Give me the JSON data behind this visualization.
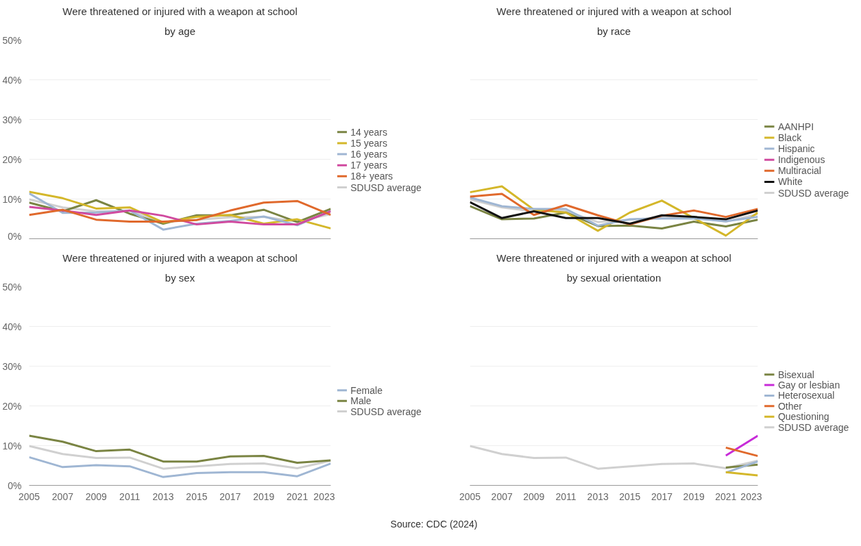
{
  "chart_data": [
    {
      "type": "line",
      "title": "Were threatened or injured with a weapon at school",
      "subtitle": "by age",
      "x": [
        2005,
        2007,
        2009,
        2011,
        2013,
        2015,
        2017,
        2019,
        2021,
        2023
      ],
      "xlim": [
        2005,
        2023
      ],
      "xticks": [
        2005,
        2007,
        2009,
        2011,
        2013,
        2015,
        2017,
        2019,
        2021,
        2023
      ],
      "ylim": [
        0,
        50
      ],
      "yticks": [
        {
          "value": 0,
          "label": "0%"
        },
        {
          "value": 10,
          "label": "10%"
        },
        {
          "value": 20,
          "label": "20%"
        },
        {
          "value": 30,
          "label": "30%"
        },
        {
          "value": 40,
          "label": "40%"
        },
        {
          "value": 50,
          "label": "50%"
        }
      ],
      "grid": "y",
      "legend": "right",
      "tick_labels": "y",
      "series": [
        {
          "name": "SDUSD average",
          "color": "#d0d0d0",
          "values": [
            9.9,
            7.9,
            6.9,
            7.0,
            4.2,
            4.8,
            5.4,
            5.5,
            4.3,
            6.2
          ]
        },
        {
          "name": "14 years",
          "color": "#7a8443",
          "values": [
            9.1,
            6.9,
            9.7,
            6.3,
            3.8,
            5.9,
            5.9,
            7.3,
            4.2,
            7.5
          ]
        },
        {
          "name": "15 years",
          "color": "#d4b72a",
          "values": [
            11.8,
            10.2,
            7.6,
            7.9,
            4.1,
            5.5,
            6.0,
            3.8,
            4.9,
            2.6
          ]
        },
        {
          "name": "16 years",
          "color": "#9fb6d3",
          "values": [
            11.4,
            6.5,
            6.6,
            7.1,
            2.3,
            3.8,
            4.5,
            5.6,
            3.4,
            7.0
          ]
        },
        {
          "name": "17 years",
          "color": "#d04a9f",
          "values": [
            8.0,
            7.1,
            6.0,
            7.1,
            5.8,
            3.6,
            4.3,
            3.6,
            3.6,
            6.9
          ]
        },
        {
          "name": "18+ years",
          "color": "#e0692c",
          "values": [
            6.0,
            7.3,
            4.8,
            4.3,
            4.3,
            4.7,
            7.1,
            9.1,
            9.5,
            6.0
          ]
        }
      ]
    },
    {
      "type": "line",
      "title": "Were threatened or injured with a weapon at school",
      "subtitle": "by race",
      "x": [
        2005,
        2007,
        2009,
        2011,
        2013,
        2015,
        2017,
        2019,
        2021,
        2023
      ],
      "xlim": [
        2005,
        2023
      ],
      "xticks": [
        2005,
        2007,
        2009,
        2011,
        2013,
        2015,
        2017,
        2019,
        2021,
        2023
      ],
      "ylim": [
        0,
        50
      ],
      "yticks": [
        {
          "value": 0,
          "label": null
        },
        {
          "value": 10,
          "label": null
        },
        {
          "value": 20,
          "label": null
        },
        {
          "value": 30,
          "label": null
        },
        {
          "value": 40,
          "label": null
        },
        {
          "value": 50,
          "label": null
        }
      ],
      "grid": "y",
      "legend": "right",
      "tick_labels": false,
      "series": [
        {
          "name": "SDUSD average",
          "color": "#d0d0d0",
          "values": [
            9.9,
            7.9,
            6.9,
            7.0,
            4.2,
            4.8,
            5.4,
            5.5,
            4.3,
            6.2
          ]
        },
        {
          "name": "AANHPI",
          "color": "#7a8443",
          "values": [
            8.2,
            4.9,
            5.1,
            6.6,
            3.2,
            3.3,
            2.6,
            4.3,
            3.1,
            4.8
          ]
        },
        {
          "name": "Black",
          "color": "#d4b72a",
          "values": [
            11.7,
            13.2,
            7.3,
            6.6,
            2.0,
            6.6,
            9.6,
            5.2,
            0.8,
            6.6
          ]
        },
        {
          "name": "Hispanic",
          "color": "#9fb6d3",
          "values": [
            10.4,
            8.2,
            7.5,
            7.5,
            3.3,
            4.9,
            5.1,
            5.1,
            4.4,
            5.5
          ]
        },
        {
          "name": "Indigenous",
          "color": "#d04a9f",
          "values": [
            null,
            null,
            null,
            null,
            null,
            null,
            null,
            null,
            null,
            null
          ]
        },
        {
          "name": "Multiracial",
          "color": "#e0692c",
          "values": [
            10.6,
            11.3,
            6.0,
            8.5,
            5.9,
            3.6,
            5.8,
            7.1,
            5.5,
            7.5
          ]
        },
        {
          "name": "White",
          "color": "#111111",
          "values": [
            9.2,
            5.2,
            6.9,
            5.2,
            5.2,
            3.8,
            5.9,
            5.5,
            4.9,
            7.1
          ]
        }
      ]
    },
    {
      "type": "line",
      "title": "Were threatened or injured with a weapon at school",
      "subtitle": "by sex",
      "x": [
        2005,
        2007,
        2009,
        2011,
        2013,
        2015,
        2017,
        2019,
        2021,
        2023
      ],
      "xlim": [
        2005,
        2023
      ],
      "xticks": [
        2005,
        2007,
        2009,
        2011,
        2013,
        2015,
        2017,
        2019,
        2021,
        2023
      ],
      "ylim": [
        0,
        50
      ],
      "yticks": [
        {
          "value": 0,
          "label": "0%"
        },
        {
          "value": 10,
          "label": "10%"
        },
        {
          "value": 20,
          "label": "20%"
        },
        {
          "value": 30,
          "label": "30%"
        },
        {
          "value": 40,
          "label": "40%"
        },
        {
          "value": 50,
          "label": "50%"
        }
      ],
      "grid": "y",
      "legend": "right",
      "series": [
        {
          "name": "SDUSD average",
          "color": "#d0d0d0",
          "values": [
            9.9,
            7.9,
            6.9,
            7.0,
            4.2,
            4.8,
            5.4,
            5.5,
            4.3,
            6.2
          ]
        },
        {
          "name": "Female",
          "color": "#9fb6d3",
          "values": [
            7.1,
            4.6,
            5.1,
            4.8,
            2.1,
            3.1,
            3.3,
            3.3,
            2.3,
            5.5
          ]
        },
        {
          "name": "Male",
          "color": "#7a8443",
          "values": [
            12.5,
            11.0,
            8.6,
            9.0,
            6.0,
            6.0,
            7.3,
            7.4,
            5.7,
            6.3
          ]
        }
      ]
    },
    {
      "type": "line",
      "title": "Were threatened or injured with a weapon at school",
      "subtitle": "by sexual orientation",
      "annotations": [
        "Source: CDC (2024)"
      ],
      "x": [
        2005,
        2007,
        2009,
        2011,
        2013,
        2015,
        2017,
        2019,
        2021,
        2023
      ],
      "xlim": [
        2005,
        2023
      ],
      "xticks": [
        2005,
        2007,
        2009,
        2011,
        2013,
        2015,
        2017,
        2019,
        2021,
        2023
      ],
      "ylim": [
        0,
        50
      ],
      "yticks": [
        {
          "value": 0,
          "label": null
        },
        {
          "value": 10,
          "label": null
        },
        {
          "value": 20,
          "label": null
        },
        {
          "value": 30,
          "label": null
        },
        {
          "value": 40,
          "label": null
        },
        {
          "value": 50,
          "label": null
        }
      ],
      "grid": "y",
      "legend": "right",
      "tick_labels": "x",
      "series": [
        {
          "name": "SDUSD average",
          "color": "#d0d0d0",
          "values": [
            9.9,
            7.9,
            6.9,
            7.0,
            4.2,
            4.8,
            5.4,
            5.5,
            4.3,
            6.2
          ]
        },
        {
          "name": "Bisexual",
          "color": "#7a8443",
          "values": [
            null,
            null,
            null,
            null,
            null,
            null,
            null,
            null,
            4.5,
            5.2
          ]
        },
        {
          "name": "Gay or lesbian",
          "color": "#c72bd8",
          "values": [
            null,
            null,
            null,
            null,
            null,
            null,
            null,
            null,
            7.5,
            12.5
          ]
        },
        {
          "name": "Heterosexual",
          "color": "#9fb6d3",
          "values": [
            null,
            null,
            null,
            null,
            null,
            null,
            null,
            null,
            3.2,
            6.0
          ]
        },
        {
          "name": "Other",
          "color": "#e0692c",
          "values": [
            null,
            null,
            null,
            null,
            null,
            null,
            null,
            null,
            9.5,
            7.4
          ]
        },
        {
          "name": "Questioning",
          "color": "#d4b72a",
          "values": [
            null,
            null,
            null,
            null,
            null,
            null,
            null,
            null,
            3.3,
            2.5
          ]
        }
      ]
    }
  ]
}
